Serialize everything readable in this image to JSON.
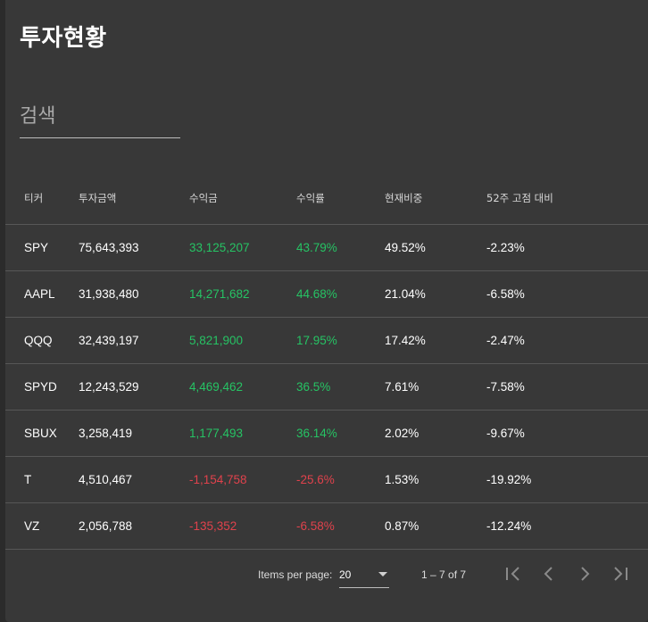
{
  "page": {
    "title": "투자현황"
  },
  "search": {
    "placeholder": "검색",
    "value": ""
  },
  "table": {
    "headers": [
      "티커",
      "투자금액",
      "수익금",
      "수익률",
      "현재비중",
      "52주 고점 대비"
    ],
    "rows": [
      {
        "ticker": "SPY",
        "amount": "75,643,393",
        "profit": "33,125,207",
        "rate": "43.79%",
        "weight": "49.52%",
        "from_high": "-2.23%",
        "trend": "positive"
      },
      {
        "ticker": "AAPL",
        "amount": "31,938,480",
        "profit": "14,271,682",
        "rate": "44.68%",
        "weight": "21.04%",
        "from_high": "-6.58%",
        "trend": "positive"
      },
      {
        "ticker": "QQQ",
        "amount": "32,439,197",
        "profit": "5,821,900",
        "rate": "17.95%",
        "weight": "17.42%",
        "from_high": "-2.47%",
        "trend": "positive"
      },
      {
        "ticker": "SPYD",
        "amount": "12,243,529",
        "profit": "4,469,462",
        "rate": "36.5%",
        "weight": "7.61%",
        "from_high": "-7.58%",
        "trend": "positive"
      },
      {
        "ticker": "SBUX",
        "amount": "3,258,419",
        "profit": "1,177,493",
        "rate": "36.14%",
        "weight": "2.02%",
        "from_high": "-9.67%",
        "trend": "positive"
      },
      {
        "ticker": "T",
        "amount": "4,510,467",
        "profit": "-1,154,758",
        "rate": "-25.6%",
        "weight": "1.53%",
        "from_high": "-19.92%",
        "trend": "negative"
      },
      {
        "ticker": "VZ",
        "amount": "2,056,788",
        "profit": "-135,352",
        "rate": "-6.58%",
        "weight": "0.87%",
        "from_high": "-12.24%",
        "trend": "negative"
      }
    ]
  },
  "paginator": {
    "items_per_page_label": "Items per page:",
    "page_size": "20",
    "range_label": "1 – 7 of 7",
    "icons": [
      "first-page-icon",
      "chevron-left-icon",
      "chevron-right-icon",
      "last-page-icon"
    ]
  },
  "colors": {
    "background": "#2b2b2b",
    "card": "#383838",
    "positive": "#26c364",
    "negative": "#e0424c",
    "text": "#ffffff"
  }
}
